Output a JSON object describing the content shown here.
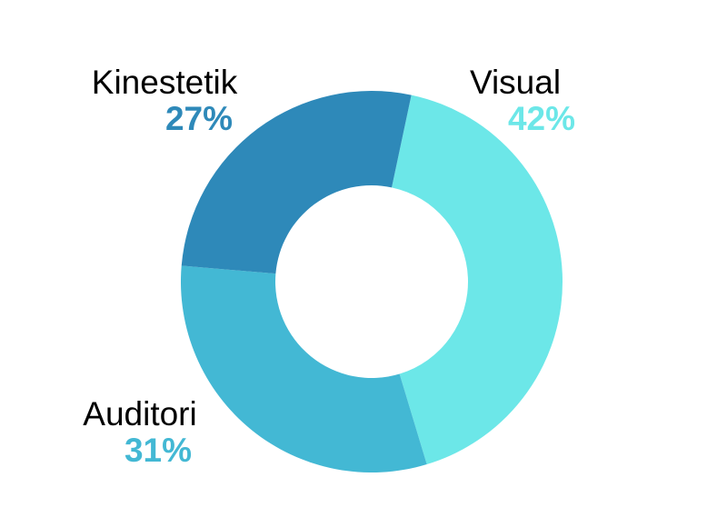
{
  "chart_data": {
    "type": "pie",
    "donut": true,
    "categories": [
      "Visual",
      "Auditori",
      "Kinestetik"
    ],
    "values": [
      42,
      31,
      27
    ],
    "value_labels": [
      "42%",
      "31%",
      "27%"
    ],
    "colors": [
      "#6ce7e8",
      "#43b8d4",
      "#2e89b9"
    ],
    "start_angle_deg": 12,
    "direction": "clockwise",
    "legend": "none"
  }
}
